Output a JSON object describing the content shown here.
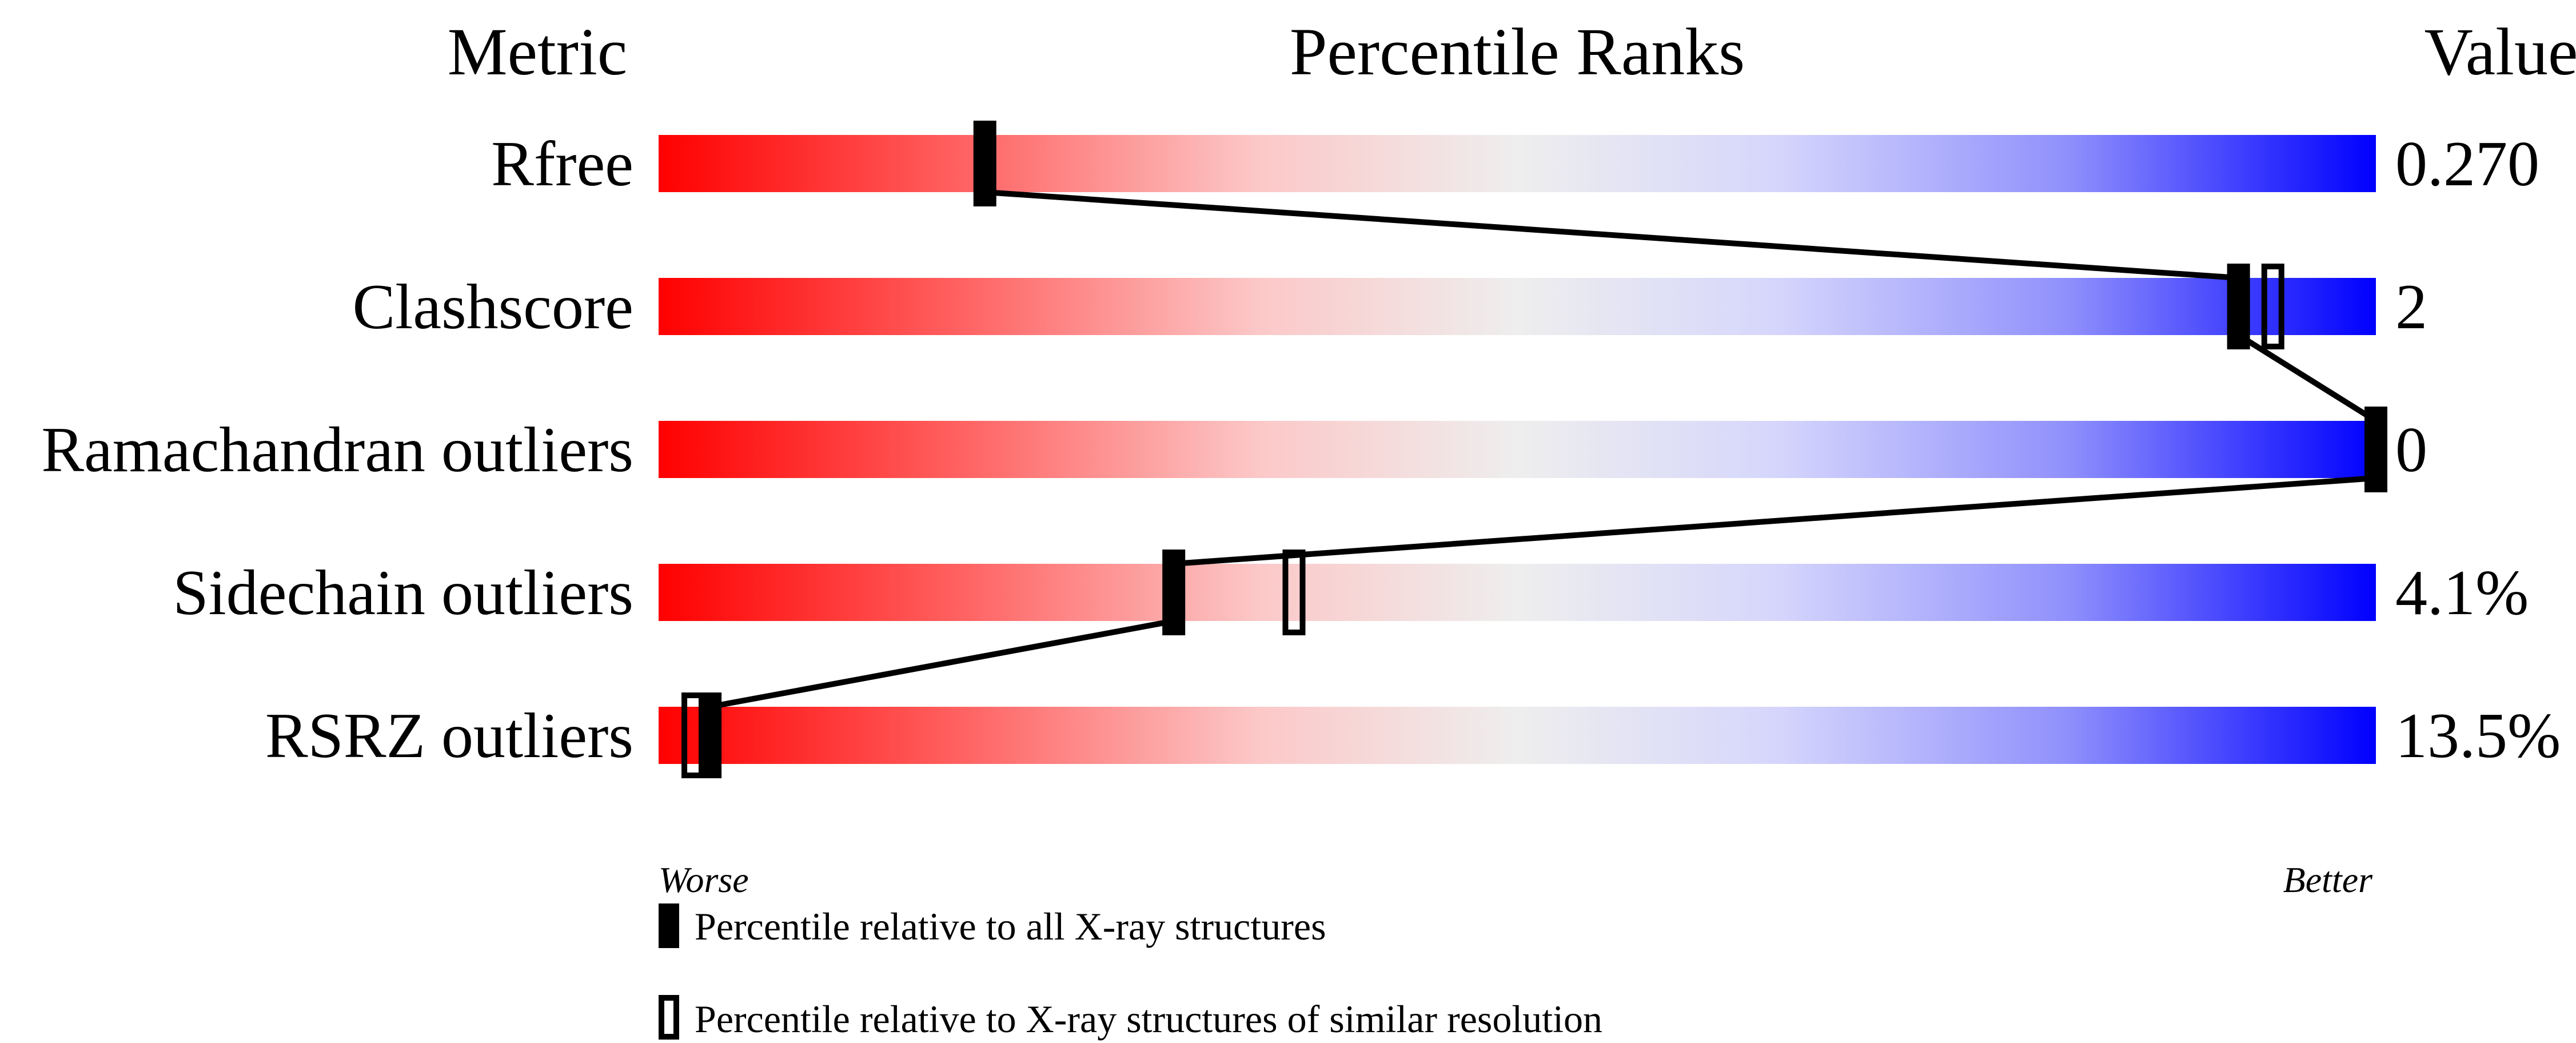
{
  "chart_data": {
    "type": "percentile-slider",
    "headers": {
      "metric": "Metric",
      "ranks": "Percentile Ranks",
      "value": "Value"
    },
    "xlim": [
      0,
      100
    ],
    "axis_labels": {
      "left": "Worse",
      "right": "Better"
    },
    "colors": {
      "worse": "#ff0000",
      "middle": "#eeeeee",
      "better": "#0000ff",
      "marker": "#000000"
    },
    "metrics": [
      {
        "name": "Rfree",
        "value": "0.270",
        "percentile_all": 19,
        "percentile_similar": null
      },
      {
        "name": "Clashscore",
        "value": "2",
        "percentile_all": 92,
        "percentile_similar": 94
      },
      {
        "name": "Ramachandran outliers",
        "value": "0",
        "percentile_all": 100,
        "percentile_similar": null
      },
      {
        "name": "Sidechain outliers",
        "value": "4.1%",
        "percentile_all": 30,
        "percentile_similar": 37
      },
      {
        "name": "RSRZ outliers",
        "value": "13.5%",
        "percentile_all": 3,
        "percentile_similar": 2
      }
    ],
    "legend": [
      {
        "marker": "filled",
        "label": "Percentile relative to all X-ray structures"
      },
      {
        "marker": "open",
        "label": "Percentile relative to X-ray structures of similar resolution"
      }
    ]
  }
}
